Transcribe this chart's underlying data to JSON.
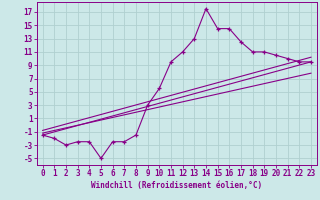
{
  "xlabel": "Windchill (Refroidissement éolien,°C)",
  "bg_color": "#cce8e8",
  "grid_color": "#b0d0d0",
  "line_color": "#880088",
  "spine_color": "#880088",
  "xlim": [
    -0.5,
    23.5
  ],
  "ylim": [
    -6.0,
    18.5
  ],
  "xticks": [
    0,
    1,
    2,
    3,
    4,
    5,
    6,
    7,
    8,
    9,
    10,
    11,
    12,
    13,
    14,
    15,
    16,
    17,
    18,
    19,
    20,
    21,
    22,
    23
  ],
  "yticks": [
    -5,
    -3,
    -1,
    1,
    3,
    5,
    7,
    9,
    11,
    13,
    15,
    17
  ],
  "data_x": [
    0,
    1,
    2,
    3,
    4,
    5,
    6,
    7,
    8,
    9,
    10,
    11,
    12,
    13,
    14,
    15,
    16,
    17,
    18,
    19,
    20,
    21,
    22,
    23
  ],
  "data_y": [
    -1.5,
    -2.0,
    -3.0,
    -2.5,
    -2.5,
    -5.0,
    -2.5,
    -2.5,
    -1.5,
    3.0,
    5.5,
    9.5,
    11.0,
    13.0,
    17.5,
    14.5,
    14.5,
    12.5,
    11.0,
    11.0,
    10.5,
    10.0,
    9.5,
    9.5
  ],
  "line1_x": [
    0,
    23
  ],
  "line1_y": [
    -1.5,
    9.5
  ],
  "line2_x": [
    0,
    23
  ],
  "line2_y": [
    -1.2,
    7.8
  ],
  "line3_x": [
    0,
    23
  ],
  "line3_y": [
    -0.8,
    10.2
  ],
  "tick_fontsize": 5.5,
  "xlabel_fontsize": 5.5
}
